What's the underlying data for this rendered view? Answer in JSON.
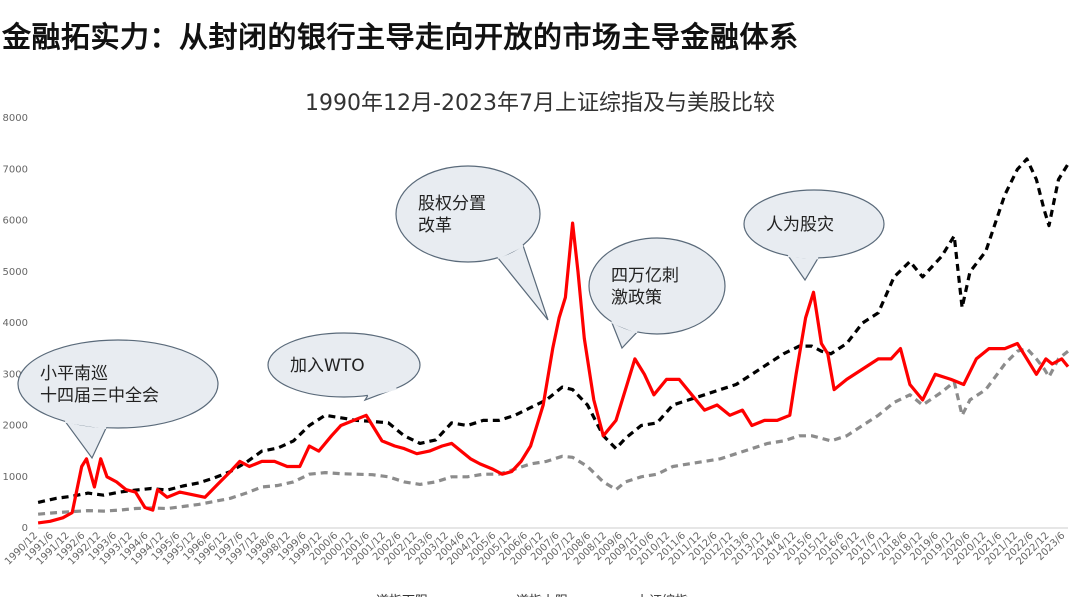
{
  "headline": "金融拓实力：从封闭的银行主导走向开放的市场主导金融体系",
  "chart_data": {
    "type": "line",
    "title": "1990年12月-2023年7月上证综指及与美股比较",
    "ylim": [
      0,
      8000
    ],
    "yticks": [
      0,
      1000,
      2000,
      3000,
      4000,
      5000,
      6000,
      7000,
      8000
    ],
    "xticks": [
      "1990/12",
      "1991/6",
      "1991/12",
      "1992/6",
      "1992/12",
      "1993/6",
      "1993/12",
      "1994/6",
      "1994/12",
      "1995/6",
      "1995/12",
      "1996/6",
      "1996/12",
      "1997/6",
      "1997/12",
      "1998/6",
      "1998/12",
      "1999/6",
      "1999/12",
      "2000/6",
      "2000/12",
      "2001/6",
      "2001/12",
      "2002/6",
      "2002/12",
      "2003/6",
      "2003/12",
      "2004/6",
      "2004/12",
      "2005/6",
      "2005/12",
      "2006/6",
      "2006/12",
      "2007/6",
      "2007/12",
      "2008/6",
      "2008/12",
      "2009/6",
      "2009/12",
      "2010/6",
      "2010/12",
      "2011/6",
      "2011/12",
      "2012/6",
      "2012/12",
      "2013/6",
      "2013/12",
      "2014/6",
      "2014/12",
      "2015/6",
      "2015/12",
      "2016/6",
      "2016/12",
      "2017/6",
      "2017/12",
      "2018/6",
      "2018/12",
      "2019/6",
      "2019/12",
      "2020/6",
      "2020/12",
      "2021/6",
      "2021/12",
      "2022/6",
      "2022/12",
      "2023/6"
    ],
    "x_start": 1990.917,
    "x_end": 2023.5,
    "grid": false,
    "legend_position": "bottom",
    "series": [
      {
        "name": "道指下限",
        "color": "#000000",
        "style": "dashed",
        "x": [
          1990.92,
          1991.5,
          1992.0,
          1992.5,
          1993.0,
          1993.5,
          1994.0,
          1994.5,
          1995.0,
          1995.5,
          1996.0,
          1996.5,
          1997.0,
          1997.5,
          1998.0,
          1998.5,
          1999.0,
          1999.5,
          2000.0,
          2000.5,
          2001.0,
          2001.5,
          2002.0,
          2002.5,
          2003.0,
          2003.5,
          2004.0,
          2004.5,
          2005.0,
          2005.5,
          2006.0,
          2006.5,
          2007.0,
          2007.5,
          2007.83,
          2008.3,
          2008.8,
          2009.2,
          2009.5,
          2010.0,
          2010.5,
          2011.0,
          2011.5,
          2012.0,
          2012.5,
          2013.0,
          2013.5,
          2014.0,
          2014.5,
          2015.0,
          2015.4,
          2015.7,
          2016.0,
          2016.5,
          2017.0,
          2017.5,
          2018.0,
          2018.5,
          2018.9,
          2019.5,
          2019.9,
          2020.15,
          2020.4,
          2020.9,
          2021.5,
          2021.9,
          2022.2,
          2022.5,
          2022.75,
          2022.9,
          2023.2,
          2023.5
        ],
        "values": [
          500,
          580,
          620,
          680,
          640,
          700,
          740,
          770,
          740,
          820,
          880,
          980,
          1100,
          1280,
          1500,
          1560,
          1700,
          2000,
          2200,
          2150,
          2100,
          2080,
          2050,
          1800,
          1650,
          1720,
          2050,
          2000,
          2100,
          2100,
          2200,
          2350,
          2500,
          2750,
          2700,
          2400,
          1800,
          1550,
          1750,
          2000,
          2050,
          2400,
          2500,
          2600,
          2700,
          2800,
          3000,
          3200,
          3400,
          3550,
          3550,
          3450,
          3400,
          3600,
          4000,
          4200,
          4900,
          5200,
          4900,
          5300,
          5700,
          4300,
          5000,
          5400,
          6500,
          7000,
          7200,
          6800,
          6200,
          5900,
          6800,
          7100
        ]
      },
      {
        "name": "道指上限",
        "color": "#8c8c8c",
        "style": "dashed",
        "x": [
          1990.92,
          1991.5,
          1992.0,
          1992.5,
          1993.0,
          1993.5,
          1994.0,
          1994.5,
          1995.0,
          1995.5,
          1996.0,
          1996.5,
          1997.0,
          1997.5,
          1998.0,
          1998.5,
          1999.0,
          1999.5,
          2000.0,
          2000.5,
          2001.0,
          2001.5,
          2002.0,
          2002.5,
          2003.0,
          2003.5,
          2004.0,
          2004.5,
          2005.0,
          2005.5,
          2006.0,
          2006.5,
          2007.0,
          2007.5,
          2007.83,
          2008.3,
          2008.8,
          2009.2,
          2009.5,
          2010.0,
          2010.5,
          2011.0,
          2011.5,
          2012.0,
          2012.5,
          2013.0,
          2013.5,
          2014.0,
          2014.5,
          2015.0,
          2015.4,
          2015.7,
          2016.0,
          2016.5,
          2017.0,
          2017.5,
          2018.0,
          2018.5,
          2018.9,
          2019.5,
          2019.9,
          2020.15,
          2020.4,
          2020.9,
          2021.5,
          2021.9,
          2022.2,
          2022.5,
          2022.75,
          2022.9,
          2023.2,
          2023.5
        ],
        "values": [
          270,
          300,
          320,
          340,
          330,
          350,
          380,
          390,
          380,
          420,
          460,
          520,
          580,
          680,
          800,
          830,
          900,
          1050,
          1080,
          1060,
          1050,
          1040,
          1000,
          900,
          850,
          900,
          1000,
          1000,
          1050,
          1050,
          1150,
          1250,
          1300,
          1400,
          1380,
          1200,
          900,
          750,
          900,
          1000,
          1050,
          1200,
          1250,
          1300,
          1350,
          1450,
          1550,
          1650,
          1700,
          1800,
          1800,
          1750,
          1700,
          1800,
          2000,
          2200,
          2450,
          2600,
          2400,
          2650,
          2850,
          2200,
          2500,
          2700,
          3200,
          3450,
          3500,
          3300,
          3100,
          2950,
          3300,
          3450
        ]
      },
      {
        "name": "上证综指",
        "color": "#ff0000",
        "style": "solid",
        "x": [
          1990.92,
          1991.3,
          1991.7,
          1992.0,
          1992.3,
          1992.45,
          1992.7,
          1992.9,
          1993.1,
          1993.4,
          1993.7,
          1994.0,
          1994.3,
          1994.55,
          1994.7,
          1995.0,
          1995.4,
          1995.8,
          1996.2,
          1996.6,
          1997.0,
          1997.3,
          1997.6,
          1998.0,
          1998.4,
          1998.8,
          1999.2,
          1999.5,
          1999.8,
          2000.2,
          2000.5,
          2000.9,
          2001.3,
          2001.5,
          2001.8,
          2002.2,
          2002.5,
          2002.9,
          2003.3,
          2003.7,
          2004.0,
          2004.3,
          2004.6,
          2004.9,
          2005.3,
          2005.6,
          2005.9,
          2006.2,
          2006.5,
          2006.9,
          2007.2,
          2007.4,
          2007.6,
          2007.83,
          2008.0,
          2008.2,
          2008.5,
          2008.8,
          2009.2,
          2009.6,
          2009.8,
          2010.1,
          2010.4,
          2010.8,
          2011.2,
          2011.6,
          2012.0,
          2012.4,
          2012.8,
          2013.2,
          2013.5,
          2013.9,
          2014.3,
          2014.7,
          2014.9,
          2015.2,
          2015.45,
          2015.7,
          2015.9,
          2016.1,
          2016.5,
          2017.0,
          2017.5,
          2017.9,
          2018.2,
          2018.5,
          2018.9,
          2019.3,
          2019.8,
          2020.2,
          2020.6,
          2021.0,
          2021.5,
          2021.9,
          2022.2,
          2022.5,
          2022.8,
          2023.0,
          2023.3,
          2023.5
        ],
        "values": [
          100,
          130,
          200,
          300,
          1200,
          1350,
          800,
          1350,
          1000,
          900,
          750,
          700,
          400,
          350,
          750,
          600,
          700,
          650,
          600,
          850,
          1100,
          1300,
          1200,
          1300,
          1300,
          1200,
          1200,
          1600,
          1500,
          1800,
          2000,
          2100,
          2200,
          2000,
          1700,
          1600,
          1550,
          1450,
          1500,
          1600,
          1650,
          1500,
          1350,
          1250,
          1150,
          1050,
          1100,
          1300,
          1600,
          2400,
          3500,
          4100,
          4500,
          5950,
          5000,
          3700,
          2500,
          1800,
          2100,
          2900,
          3300,
          3000,
          2600,
          2900,
          2900,
          2600,
          2300,
          2400,
          2200,
          2300,
          2000,
          2100,
          2100,
          2200,
          3000,
          4100,
          4600,
          3600,
          3400,
          2700,
          2900,
          3100,
          3300,
          3300,
          3500,
          2800,
          2500,
          3000,
          2900,
          2800,
          3300,
          3500,
          3500,
          3600,
          3300,
          3000,
          3300,
          3200,
          3300,
          3150
        ]
      }
    ],
    "annotations": [
      {
        "lines": [
          "小平南巡",
          "十四届三中全会"
        ],
        "x": 1992.5,
        "y": 1400
      },
      {
        "lines": [
          "加入WTO"
        ],
        "x": 2001.3,
        "y": 2300
      },
      {
        "lines": [
          "股权分置",
          "改革"
        ],
        "x": 2007.7,
        "y": 4500
      },
      {
        "lines": [
          "四万亿刺",
          "激政策"
        ],
        "x": 2009.4,
        "y": 3500
      },
      {
        "lines": [
          "人为股灾"
        ],
        "x": 2015.4,
        "y": 4700
      }
    ]
  }
}
